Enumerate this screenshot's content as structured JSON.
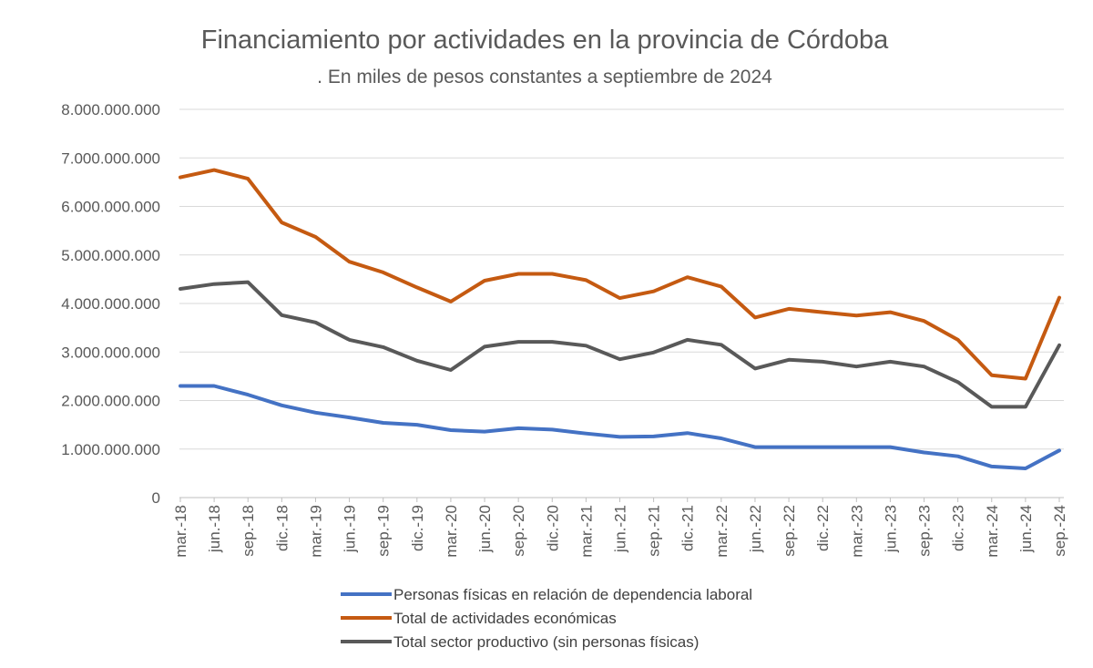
{
  "chart_data": {
    "type": "line",
    "title": "Financiamiento por actividades en la provincia de Córdoba",
    "subtitle": ". En miles de pesos constantes a septiembre de 2024",
    "xlabel": "",
    "ylabel": "",
    "ylim": [
      0,
      8000000000
    ],
    "yticks": [
      "0",
      "1.000.000.000",
      "2.000.000.000",
      "3.000.000.000",
      "4.000.000.000",
      "5.000.000.000",
      "6.000.000.000",
      "7.000.000.000",
      "8.000.000.000"
    ],
    "grid": true,
    "legend_position": "bottom",
    "categories": [
      "mar.-18",
      "jun.-18",
      "sep.-18",
      "dic.-18",
      "mar.-19",
      "jun.-19",
      "sep.-19",
      "dic.-19",
      "mar.-20",
      "jun.-20",
      "sep.-20",
      "dic.-20",
      "mar.-21",
      "jun.-21",
      "sep.-21",
      "dic.-21",
      "mar.-22",
      "jun.-22",
      "sep.-22",
      "dic.-22",
      "mar.-23",
      "jun.-23",
      "sep.-23",
      "dic.-23",
      "mar.-24",
      "jun.-24",
      "sep.-24"
    ],
    "series": [
      {
        "name": "Personas físicas en relación de dependencia laboral",
        "color": "#4472C4",
        "values": [
          2300000000,
          2300000000,
          2120000000,
          1900000000,
          1750000000,
          1650000000,
          1540000000,
          1500000000,
          1390000000,
          1360000000,
          1430000000,
          1400000000,
          1320000000,
          1250000000,
          1260000000,
          1330000000,
          1220000000,
          1040000000,
          1040000000,
          1040000000,
          1040000000,
          1040000000,
          930000000,
          850000000,
          640000000,
          600000000,
          970000000
        ]
      },
      {
        "name": "Total de actividades económicas",
        "color": "#C55A11",
        "values": [
          6600000000,
          6750000000,
          6570000000,
          5670000000,
          5370000000,
          4860000000,
          4640000000,
          4330000000,
          4040000000,
          4470000000,
          4610000000,
          4610000000,
          4480000000,
          4110000000,
          4250000000,
          4540000000,
          4350000000,
          3710000000,
          3890000000,
          3820000000,
          3750000000,
          3820000000,
          3640000000,
          3250000000,
          2520000000,
          2450000000,
          4120000000
        ]
      },
      {
        "name": "Total sector  productivo (sin personas físicas)",
        "color": "#595959",
        "values": [
          4300000000,
          4400000000,
          4440000000,
          3760000000,
          3610000000,
          3250000000,
          3100000000,
          2820000000,
          2630000000,
          3110000000,
          3210000000,
          3210000000,
          3130000000,
          2850000000,
          2990000000,
          3250000000,
          3150000000,
          2660000000,
          2840000000,
          2800000000,
          2700000000,
          2800000000,
          2700000000,
          2380000000,
          1870000000,
          1870000000,
          3140000000
        ]
      }
    ]
  }
}
